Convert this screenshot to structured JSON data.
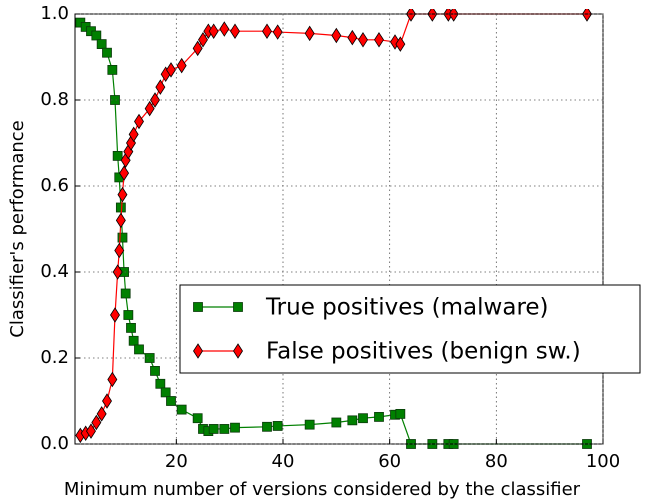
{
  "chart_data": {
    "type": "line",
    "xlabel": "Minimum number of versions considered by the classifier",
    "ylabel": "Classifier's performance",
    "x": [
      2,
      3,
      4,
      5,
      6,
      7,
      8,
      8.5,
      9,
      9.3,
      9.6,
      9.9,
      10.2,
      10.5,
      11,
      11.5,
      12,
      13,
      15,
      16,
      17,
      18,
      19,
      21,
      24,
      25,
      26,
      27,
      29,
      31,
      37,
      39,
      45,
      50,
      53,
      55,
      58,
      61,
      62,
      64,
      68,
      71,
      72,
      97
    ],
    "series": [
      {
        "name": "True positives (malware)",
        "color": "#008000",
        "marker": "square",
        "values": [
          0.98,
          0.97,
          0.96,
          0.95,
          0.93,
          0.91,
          0.87,
          0.8,
          0.67,
          0.62,
          0.55,
          0.48,
          0.4,
          0.35,
          0.3,
          0.27,
          0.24,
          0.22,
          0.2,
          0.17,
          0.14,
          0.12,
          0.1,
          0.08,
          0.06,
          0.035,
          0.03,
          0.035,
          0.035,
          0.038,
          0.04,
          0.042,
          0.045,
          0.05,
          0.055,
          0.06,
          0.063,
          0.068,
          0.07,
          0,
          0,
          0,
          0,
          0
        ]
      },
      {
        "name": "False positives (benign sw.)",
        "color": "#ff0000",
        "marker": "diamond",
        "values": [
          0.02,
          0.025,
          0.03,
          0.05,
          0.07,
          0.1,
          0.15,
          0.3,
          0.4,
          0.45,
          0.52,
          0.58,
          0.63,
          0.66,
          0.68,
          0.7,
          0.72,
          0.75,
          0.78,
          0.8,
          0.83,
          0.86,
          0.87,
          0.88,
          0.92,
          0.94,
          0.96,
          0.96,
          0.965,
          0.96,
          0.96,
          0.958,
          0.955,
          0.95,
          0.945,
          0.94,
          0.94,
          0.935,
          0.93,
          1,
          1,
          1,
          1,
          1
        ]
      }
    ],
    "xlim": [
      1,
      100
    ],
    "xticks": [
      20,
      40,
      60,
      80,
      100
    ],
    "ylim": [
      0,
      1
    ],
    "yticks": [
      {
        "value": 0,
        "label": "0.0"
      },
      0.2,
      0.4,
      0.6,
      0.8,
      {
        "value": 1,
        "label": "1.0"
      }
    ],
    "grid": true,
    "legend": "lower right"
  }
}
